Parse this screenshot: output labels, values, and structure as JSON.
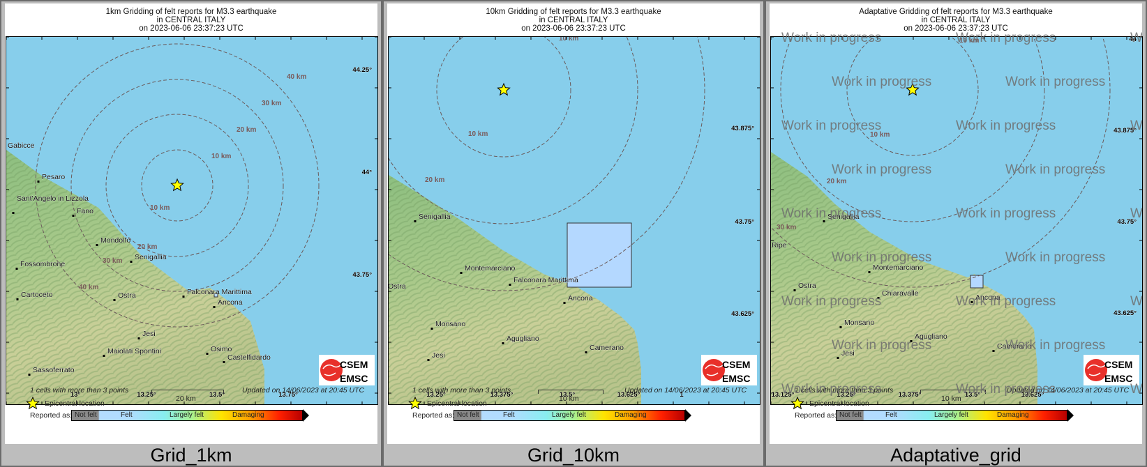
{
  "panels": [
    {
      "id": "grid-1km",
      "title": [
        "1km Gridding of felt reports for M3.3 earthquake",
        "in CENTRAL ITALY",
        "on  2023-06-06 23:37:23 UTC"
      ],
      "caption": "Grid_1km",
      "cells_note": "1 cells with more than 3 points",
      "scale_label": "20 km",
      "updated": "Updated on 14/06/2023 at 20:45 UTC",
      "lat_labels": [
        "44.25°",
        "44°",
        "43.75°"
      ],
      "lon_labels": [
        "13°",
        "13.25°",
        "13.5°",
        "13.75°"
      ],
      "ring_labels": [
        "10 km",
        "20 km",
        "30 km",
        "40 km",
        "10 km",
        "20 km",
        "30 km",
        "40 km"
      ],
      "cities": [
        "Gabicce",
        "Pesaro",
        "Sant'Angelo in Lizzola",
        "Fano",
        "Mondolfo",
        "Senigallia",
        "Fossombrone",
        "Cartoceto",
        "Ostra",
        "Falconara Marittima",
        "Ancona",
        "Jesi",
        "Maiolati Spontini",
        "Osimo",
        "Castelfidardo",
        "Sassoferrato"
      ],
      "watermark": ""
    },
    {
      "id": "grid-10km",
      "title": [
        "10km Gridding of felt reports for M3.3 earthquake",
        "in CENTRAL ITALY",
        "on  2023-06-06 23:37:23 UTC"
      ],
      "caption": "Grid_10km",
      "cells_note": "1 cells with more than 3 points",
      "scale_label": "10 km",
      "updated": "Updated on 14/06/2023 at 20:45 UTC",
      "lat_labels": [
        "43.875°",
        "43.75°",
        "43.625°"
      ],
      "lon_labels": [
        "13.25°",
        "13.375°",
        "13.5°",
        "13.625°",
        "1"
      ],
      "ring_labels": [
        "10 km",
        "10 km",
        "20 km"
      ],
      "cities": [
        "Senigallia",
        "Montemarciano",
        "Falconara Marittima",
        "Ostra",
        "Ancona",
        "Monsano",
        "Agugliano",
        "Jesi",
        "Camerano"
      ],
      "watermark": ""
    },
    {
      "id": "adaptative-grid",
      "title": [
        "Adaptative Gridding of felt reports for M3.3 earthquake",
        "in CENTRAL ITALY",
        "on  2023-06-06 23:37:23 UTC"
      ],
      "caption": "Adaptative_grid",
      "cells_note": "1 cells with more than 3 points",
      "scale_label": "10 km",
      "updated": "Updated on 14/06/2023 at 20:45 UTC",
      "lat_labels": [
        "44",
        "43.875°",
        "43.75°",
        "43.625°"
      ],
      "lon_labels": [
        "13.125°",
        "13.25°",
        "13.375°",
        "13.5°",
        "13.625°"
      ],
      "ring_labels": [
        "10 km",
        "10 km",
        "20 km",
        "30 km"
      ],
      "cities": [
        "Senigallia",
        "Ripe",
        "Montemarciano",
        "Ostra",
        "Chiaravalle",
        "Ancona",
        "Monsano",
        "Agugliano",
        "Jesi",
        "Camerano"
      ],
      "watermark": "Work in progress"
    }
  ],
  "legend": {
    "epicentral": "Epicentral location",
    "reported_as": "Reported as:",
    "scale": [
      "Not felt",
      "Felt",
      "Largely felt",
      "Damaging"
    ]
  },
  "logo": {
    "top": "CSEM",
    "bottom": "EMSC"
  },
  "colors": {
    "sea": "#87ceeb",
    "epicenter": "#ffff00",
    "felt_cell": "#b4d8ff",
    "ring": "#6b5a5a",
    "ring_label": "#7a5a5a"
  }
}
